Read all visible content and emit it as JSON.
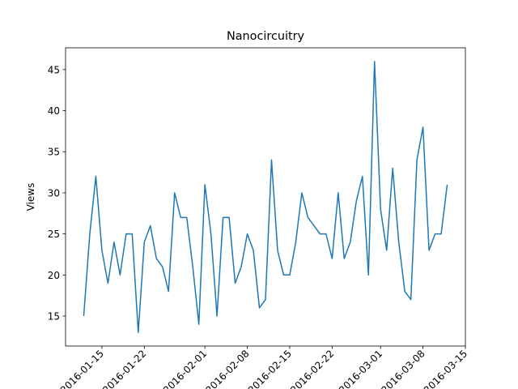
{
  "chart_data": {
    "type": "line",
    "title": "Nanocircuitry",
    "y_label": "Views",
    "x": [
      "2016-01-12",
      "2016-01-13",
      "2016-01-14",
      "2016-01-15",
      "2016-01-16",
      "2016-01-17",
      "2016-01-18",
      "2016-01-19",
      "2016-01-20",
      "2016-01-21",
      "2016-01-22",
      "2016-01-23",
      "2016-01-24",
      "2016-01-25",
      "2016-01-26",
      "2016-01-27",
      "2016-01-28",
      "2016-01-29",
      "2016-01-30",
      "2016-01-31",
      "2016-02-01",
      "2016-02-02",
      "2016-02-03",
      "2016-02-04",
      "2016-02-05",
      "2016-02-06",
      "2016-02-07",
      "2016-02-08",
      "2016-02-09",
      "2016-02-10",
      "2016-02-11",
      "2016-02-12",
      "2016-02-13",
      "2016-02-14",
      "2016-02-15",
      "2016-02-16",
      "2016-02-17",
      "2016-02-18",
      "2016-02-19",
      "2016-02-20",
      "2016-02-21",
      "2016-02-22",
      "2016-02-23",
      "2016-02-24",
      "2016-02-25",
      "2016-02-26",
      "2016-02-27",
      "2016-02-28",
      "2016-02-29",
      "2016-03-01",
      "2016-03-02",
      "2016-03-03",
      "2016-03-04",
      "2016-03-05",
      "2016-03-06",
      "2016-03-07",
      "2016-03-08",
      "2016-03-09",
      "2016-03-10",
      "2016-03-11",
      "2016-03-12"
    ],
    "values": [
      15,
      25,
      32,
      23,
      19,
      24,
      20,
      25,
      25,
      13,
      24,
      26,
      22,
      21,
      18,
      30,
      27,
      27,
      21,
      14,
      31,
      25,
      15,
      27,
      27,
      19,
      21,
      25,
      23,
      16,
      17,
      34,
      23,
      20,
      20,
      24,
      30,
      27,
      26,
      25,
      25,
      22,
      30,
      22,
      24,
      29,
      32,
      20,
      46,
      28,
      23,
      33,
      24,
      18,
      17,
      34,
      38,
      23,
      25,
      25,
      31
    ],
    "color": "#1f77b4",
    "xlim": [
      "2016-01-09",
      "2016-03-15"
    ],
    "xticks": [
      "2016-01-15",
      "2016-01-22",
      "2016-02-01",
      "2016-02-08",
      "2016-02-15",
      "2016-02-22",
      "2016-03-01",
      "2016-03-08",
      "2016-03-15"
    ],
    "ylim": [
      11.35,
      47.65
    ],
    "yticks": [
      15,
      20,
      25,
      30,
      35,
      40,
      45
    ]
  }
}
